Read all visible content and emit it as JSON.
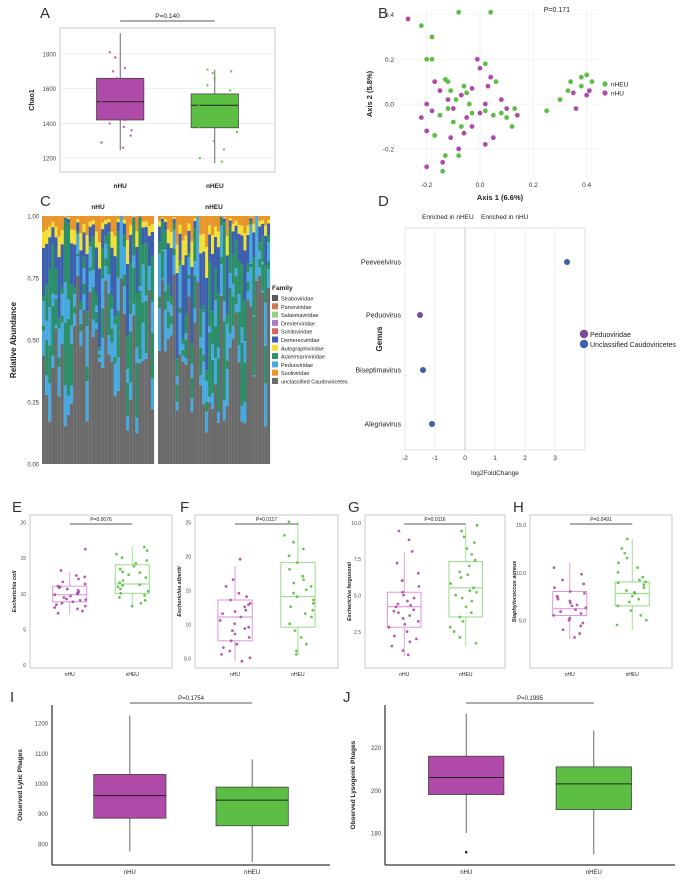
{
  "colors": {
    "nHU": "#b04aa8",
    "nHEU": "#5cbf43",
    "nHU_light": "#d98ad5",
    "nHEU_light": "#8cd77a",
    "blue": "#3d5fad",
    "grid": "#e6e6e6",
    "dark_gray": "#555555"
  },
  "panel_labels": [
    "A",
    "B",
    "C",
    "D",
    "E",
    "F",
    "G",
    "H",
    "I",
    "J"
  ],
  "chart_data": [
    {
      "id": "A",
      "type": "boxplot",
      "title": "",
      "pvalue": "P=0.140",
      "ylabel": "Chao1",
      "xlabel": "",
      "categories": [
        "nHU",
        "nHEU"
      ],
      "ylim": [
        1120,
        1950
      ],
      "yticks": [
        1200,
        1400,
        1600,
        1800
      ],
      "ytick_labels": [
        "1200",
        "1400",
        "1600",
        "1800"
      ],
      "boxes": [
        {
          "group": "nHU",
          "min": 1245,
          "q1": 1420,
          "median": 1525,
          "q3": 1660,
          "max": 1920
        },
        {
          "group": "nHEU",
          "min": 1170,
          "q1": 1375,
          "median": 1505,
          "q3": 1570,
          "max": 1710
        }
      ],
      "points": [
        [
          [
            1810,
            1780,
            1720,
            1700,
            1660,
            1640,
            1600,
            1580,
            1560,
            1540,
            1520,
            1500,
            1480,
            1460,
            1440,
            1420,
            1400,
            1380,
            1360,
            1330,
            1290,
            1260
          ]
        ],
        [
          [
            1710,
            1700,
            1690,
            1660,
            1620,
            1590,
            1560,
            1540,
            1520,
            1500,
            1480,
            1450,
            1420,
            1400,
            1380,
            1350,
            1300,
            1250,
            1200,
            1180
          ]
        ]
      ]
    },
    {
      "id": "B",
      "type": "scatter",
      "title": "",
      "pvalue": "P=0.171",
      "xlabel": "Axis 1 (6.6%)",
      "ylabel": "Axis 2 (5.8%)",
      "xlim": [
        -0.3,
        0.45
      ],
      "ylim": [
        -0.33,
        0.42
      ],
      "xticks": [
        -0.2,
        0.0,
        0.2,
        0.4
      ],
      "xtick_labels": [
        "-0.2",
        "0.0",
        "0.2",
        "0.4"
      ],
      "yticks": [
        -0.2,
        0.0,
        0.2,
        0.4
      ],
      "ytick_labels": [
        "-0.2",
        "0.0",
        "0.2",
        "0.4"
      ],
      "legend": [
        "nHEU",
        "nHU"
      ],
      "series": [
        {
          "name": "nHEU",
          "points": [
            [
              -0.22,
              0.35
            ],
            [
              -0.18,
              0.3
            ],
            [
              -0.2,
              0.2
            ],
            [
              -0.18,
              0.2
            ],
            [
              -0.08,
              0.41
            ],
            [
              0.04,
              0.41
            ],
            [
              -0.13,
              0.11
            ],
            [
              -0.12,
              0.1
            ],
            [
              -0.11,
              0.06
            ],
            [
              -0.06,
              0.08
            ],
            [
              -0.05,
              0.05
            ],
            [
              -0.09,
              0.02
            ],
            [
              -0.04,
              0.0
            ],
            [
              -0.12,
              -0.02
            ],
            [
              -0.15,
              -0.05
            ],
            [
              -0.1,
              -0.08
            ],
            [
              -0.07,
              -0.1
            ],
            [
              -0.03,
              -0.04
            ],
            [
              0.02,
              -0.03
            ],
            [
              0.05,
              -0.05
            ],
            [
              0.08,
              -0.04
            ],
            [
              0.1,
              -0.06
            ],
            [
              0.12,
              -0.1
            ],
            [
              0.13,
              -0.02
            ],
            [
              0.06,
              0.1
            ],
            [
              0.02,
              0.18
            ],
            [
              -0.08,
              -0.23
            ],
            [
              -0.13,
              -0.23
            ],
            [
              -0.14,
              -0.3
            ],
            [
              0.25,
              -0.03
            ],
            [
              0.3,
              0.02
            ],
            [
              0.33,
              0.06
            ],
            [
              0.38,
              0.08
            ],
            [
              0.42,
              0.1
            ],
            [
              0.4,
              0.13
            ],
            [
              0.38,
              0.12
            ],
            [
              0.34,
              0.1
            ],
            [
              -0.17,
              -0.14
            ]
          ]
        },
        {
          "name": "nHU",
          "points": [
            [
              -0.27,
              0.38
            ],
            [
              -0.01,
              0.2
            ],
            [
              -0.2,
              0.0
            ],
            [
              -0.18,
              -0.03
            ],
            [
              -0.22,
              -0.06
            ],
            [
              -0.2,
              -0.12
            ],
            [
              -0.15,
              0.06
            ],
            [
              -0.12,
              0.02
            ],
            [
              -0.1,
              -0.02
            ],
            [
              -0.07,
              0.04
            ],
            [
              -0.05,
              -0.06
            ],
            [
              -0.03,
              -0.1
            ],
            [
              0.0,
              -0.04
            ],
            [
              0.02,
              0.0
            ],
            [
              0.03,
              0.08
            ],
            [
              0.04,
              0.12
            ],
            [
              0.08,
              0.02
            ],
            [
              0.1,
              -0.02
            ],
            [
              0.14,
              -0.05
            ],
            [
              -0.06,
              -0.13
            ],
            [
              -0.08,
              -0.2
            ],
            [
              -0.11,
              -0.15
            ],
            [
              0.02,
              -0.18
            ],
            [
              0.05,
              -0.15
            ],
            [
              0.0,
              0.16
            ],
            [
              -0.14,
              -0.26
            ],
            [
              -0.17,
              0.1
            ],
            [
              -0.03,
              0.07
            ],
            [
              -0.2,
              -0.28
            ],
            [
              0.36,
              -0.02
            ],
            [
              0.4,
              0.04
            ],
            [
              0.41,
              0.06
            ],
            [
              0.35,
              0.05
            ]
          ]
        }
      ]
    },
    {
      "id": "C",
      "type": "stacked-bar",
      "ylabel": "Relative Abundance",
      "groups": [
        "nHU",
        "nHEU"
      ],
      "yticks": [
        0.0,
        0.25,
        0.5,
        0.75,
        1.0
      ],
      "ytick_labels": [
        "0.00",
        "0.25",
        "0.50",
        "0.75",
        "1.00"
      ],
      "legend_title": "Family",
      "families": [
        "Straboviridae",
        "Parvoviridae",
        "Salasmaviridae",
        "Drexlerviridae",
        "Schitoviridae",
        "Demerecviridae",
        "Autographiviridae",
        "Ackermannviridae",
        "Peduoviridae",
        "Suoliviridae",
        "unclassified Caudoviricetes"
      ],
      "family_colors": [
        "#5a5a5a",
        "#d17a4a",
        "#9ccf8a",
        "#a87fc5",
        "#d66a5e",
        "#3d5fad",
        "#f2e037",
        "#2c8f6a",
        "#47a9e0",
        "#e8952a",
        "#6b6b6b"
      ]
    },
    {
      "id": "D",
      "type": "dot",
      "xlabel": "log2FoldChange",
      "ylabel": "Genus",
      "header_left": "Enriched in nHEU",
      "header_right": "Enriched in nHU",
      "xlim": [
        -2,
        4
      ],
      "xticks": [
        -2,
        -1,
        0,
        1,
        2,
        3
      ],
      "xtick_labels": [
        "-2",
        "-1",
        "0",
        "1",
        "2",
        "3"
      ],
      "categories": [
        "Peeveelvirus",
        "Peduovirus",
        "Biseptimavirus",
        "Alegriavirus"
      ],
      "values": [
        3.4,
        -1.5,
        -1.4,
        -1.1
      ],
      "families": [
        "Unclassified Caudoviricetes",
        "Peduoviridae",
        "Unclassified Caudoviricetes",
        "Unclassified Caudoviricetes"
      ],
      "legend": [
        "Peduoviridae",
        "Unclassified Caudoviricetes"
      ]
    },
    {
      "id": "E",
      "type": "boxplot",
      "pvalue": "P=0.0076",
      "ylabel": "Escherichia coli",
      "categories": [
        "nHU",
        "nHEU"
      ],
      "ylim": [
        -0.5,
        21
      ],
      "yticks": [
        0,
        5,
        10,
        15,
        20
      ],
      "ytick_labels": [
        "0",
        "5",
        "10",
        "15",
        "20"
      ],
      "boxes": [
        {
          "group": "nHU",
          "min": 7.0,
          "q1": 8.8,
          "median": 9.8,
          "q3": 11.0,
          "max": 13.0
        },
        {
          "group": "nHEU",
          "min": 8.0,
          "q1": 10.0,
          "median": 11.3,
          "q3": 14.0,
          "max": 16.5
        }
      ],
      "points": [
        [
          [
            16.2,
            13.2,
            12.5,
            12.3,
            12.0,
            11.6,
            11.3,
            11.0,
            10.8,
            10.6,
            10.4,
            10.2,
            10.0,
            9.8,
            9.6,
            9.4,
            9.2,
            9.0,
            8.8,
            8.6,
            8.4,
            8.2,
            8.0,
            7.8,
            7.5,
            7.2,
            10.9,
            9.9,
            9.1
          ]
        ],
        [
          [
            16.5,
            16.0,
            15.5,
            15.0,
            14.6,
            14.2,
            13.8,
            13.4,
            13.0,
            12.6,
            12.2,
            11.8,
            11.5,
            11.2,
            10.9,
            10.6,
            10.3,
            10.0,
            9.7,
            9.4,
            9.0,
            8.6,
            8.2,
            12.9,
            11.1
          ]
        ]
      ]
    },
    {
      "id": "F",
      "type": "boxplot",
      "pvalue": "P=0.0117",
      "ylabel": "Escherichia albertii",
      "categories": [
        "nHU",
        "nHEU"
      ],
      "ylim": [
        3.5,
        26
      ],
      "yticks": [
        5,
        10,
        15,
        20,
        25
      ],
      "ytick_labels": [
        "5.0",
        "10",
        "15",
        "20",
        "25"
      ],
      "boxes": [
        {
          "group": "nHU",
          "min": 4.5,
          "q1": 7.5,
          "median": 11.0,
          "q3": 13.5,
          "max": 18.5
        },
        {
          "group": "nHEU",
          "min": 5.5,
          "q1": 9.5,
          "median": 14.0,
          "q3": 19.0,
          "max": 25.0
        }
      ],
      "points": [
        [
          [
            19.5,
            16.5,
            15.5,
            14.5,
            14.0,
            13.5,
            13.0,
            12.5,
            12.0,
            11.5,
            11.0,
            10.5,
            10.0,
            9.5,
            9.0,
            8.5,
            8.0,
            7.5,
            7.0,
            6.5,
            6.0,
            5.5,
            5.0,
            4.5,
            11.8,
            9.3,
            12.8
          ]
        ],
        [
          [
            25.0,
            23.0,
            22.0,
            21.0,
            20.0,
            19.0,
            18.0,
            17.0,
            16.5,
            16.0,
            15.0,
            14.5,
            14.0,
            13.5,
            13.0,
            12.0,
            11.5,
            11.0,
            10.0,
            9.0,
            8.0,
            7.0,
            6.0,
            5.5,
            15.5,
            12.5
          ]
        ]
      ]
    },
    {
      "id": "G",
      "type": "boxplot",
      "pvalue": "P=0.0116",
      "ylabel": "Escherichia fergusonii",
      "categories": [
        "nHU",
        "nHEU"
      ],
      "ylim": [
        0,
        10.5
      ],
      "yticks": [
        2.5,
        5.0,
        7.5,
        10.0
      ],
      "ytick_labels": [
        "2.5",
        "5.0",
        "7.5",
        "10.0"
      ],
      "boxes": [
        {
          "group": "nHU",
          "min": 0.8,
          "q1": 2.8,
          "median": 4.2,
          "q3": 5.2,
          "max": 8.0
        },
        {
          "group": "nHEU",
          "min": 1.5,
          "q1": 3.5,
          "median": 5.5,
          "q3": 7.3,
          "max": 9.8
        }
      ],
      "points": [
        [
          [
            9.4,
            8.8,
            8.0,
            7.2,
            6.5,
            6.0,
            5.6,
            5.2,
            5.0,
            4.8,
            4.6,
            4.4,
            4.2,
            4.0,
            3.8,
            3.6,
            3.4,
            3.2,
            3.0,
            2.8,
            2.5,
            2.2,
            2.0,
            1.8,
            1.5,
            1.2,
            0.9,
            4.3,
            3.9
          ]
        ],
        [
          [
            9.8,
            9.4,
            9.0,
            8.6,
            8.2,
            7.8,
            7.4,
            7.0,
            6.6,
            6.2,
            5.8,
            5.5,
            5.2,
            5.0,
            4.8,
            4.6,
            4.2,
            3.8,
            3.5,
            3.2,
            2.8,
            2.5,
            2.1,
            1.7,
            6.4,
            5.3
          ]
        ]
      ]
    },
    {
      "id": "H",
      "type": "boxplot",
      "pvalue": "P=0.0491",
      "ylabel": "Staphylococcus aureus",
      "categories": [
        "nHU",
        "nHEU"
      ],
      "ylim": [
        0,
        16
      ],
      "yticks": [
        5.0,
        10.0,
        15.0
      ],
      "ytick_labels": [
        "5.0",
        "10.0",
        "15.0"
      ],
      "boxes": [
        {
          "group": "nHU",
          "min": 3.0,
          "q1": 5.5,
          "median": 6.2,
          "q3": 8.0,
          "max": 11.0
        },
        {
          "group": "nHEU",
          "min": 4.0,
          "q1": 6.5,
          "median": 7.8,
          "q3": 9.0,
          "max": 13.5
        }
      ],
      "points": [
        [
          [
            10.5,
            9.8,
            9.2,
            8.8,
            8.4,
            8.0,
            7.8,
            7.5,
            7.2,
            7.0,
            6.8,
            6.5,
            6.3,
            6.1,
            5.9,
            5.7,
            5.5,
            5.2,
            5.0,
            4.7,
            4.4,
            4.0,
            3.6,
            3.2,
            6.6,
            7.4
          ]
        ],
        [
          [
            13.5,
            12.5,
            12.0,
            11.5,
            11.0,
            10.5,
            10.0,
            9.5,
            9.2,
            9.0,
            8.7,
            8.4,
            8.1,
            7.8,
            7.5,
            7.2,
            6.9,
            6.5,
            6.0,
            5.5,
            5.0,
            4.5,
            8.9,
            7.9
          ]
        ]
      ]
    },
    {
      "id": "I",
      "type": "boxplot",
      "pvalue": "P=0.1754",
      "ylabel": "Observed Lytic Phages",
      "categories": [
        "nHU",
        "nHEU"
      ],
      "ylim": [
        730,
        1260
      ],
      "yticks": [
        800,
        900,
        1000,
        1100,
        1200
      ],
      "ytick_labels": [
        "800",
        "900",
        "1000",
        "1100",
        "1200"
      ],
      "boxes": [
        {
          "group": "nHU",
          "min": 775,
          "q1": 885,
          "median": 960,
          "q3": 1030,
          "max": 1225
        },
        {
          "group": "nHEU",
          "min": 740,
          "q1": 860,
          "median": 945,
          "q3": 988,
          "max": 1080
        }
      ]
    },
    {
      "id": "J",
      "type": "boxplot",
      "pvalue": "P=0.1995",
      "ylabel": "Observed Lysogenic Phages",
      "categories": [
        "nHU",
        "nHEU"
      ],
      "ylim": [
        165,
        240
      ],
      "yticks": [
        180,
        200,
        220
      ],
      "ytick_labels": [
        "180",
        "200",
        "220"
      ],
      "boxes": [
        {
          "group": "nHU",
          "min": 180,
          "q1": 198,
          "median": 206,
          "q3": 216,
          "max": 236
        },
        {
          "group": "nHEU",
          "min": 170,
          "q1": 191,
          "median": 203,
          "q3": 211,
          "max": 228
        }
      ],
      "outliers": [
        {
          "group": "nHU",
          "value": 171
        }
      ]
    }
  ]
}
